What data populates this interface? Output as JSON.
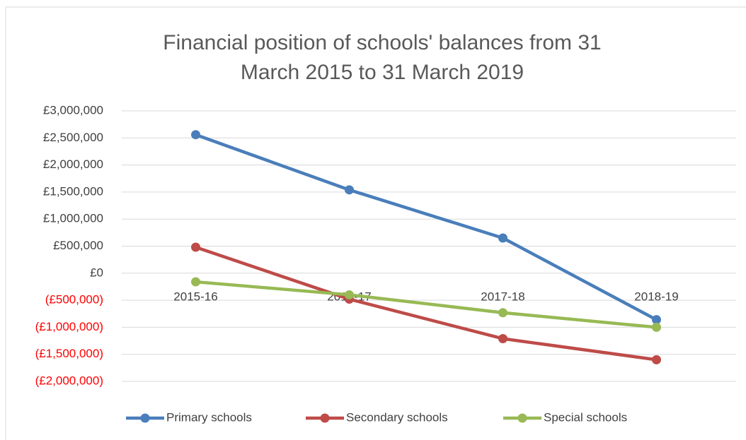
{
  "chart_data": {
    "type": "line",
    "title": "Financial position of schools' balances from 31 March 2015 to 31 March 2019",
    "categories": [
      "2015-16",
      "2016-17",
      "2017-18",
      "2018-19"
    ],
    "series": [
      {
        "name": "Primary schools",
        "color": "#4a7ebb",
        "values": [
          2560000,
          1540000,
          650000,
          -860000
        ]
      },
      {
        "name": "Secondary schools",
        "color": "#be4b48",
        "values": [
          480000,
          -480000,
          -1210000,
          -1600000
        ]
      },
      {
        "name": "Special schools",
        "color": "#98b954",
        "values": [
          -160000,
          -400000,
          -730000,
          -1000000
        ]
      }
    ],
    "ylim": [
      -2000000,
      3000000
    ],
    "yticks": [
      {
        "value": -2000000,
        "label": "(£2,000,000)"
      },
      {
        "value": -1500000,
        "label": "(£1,500,000)"
      },
      {
        "value": -1000000,
        "label": "(£1,000,000)"
      },
      {
        "value": -500000,
        "label": "(£500,000)"
      },
      {
        "value": 0,
        "label": "£0"
      },
      {
        "value": 500000,
        "label": "£500,000"
      },
      {
        "value": 1000000,
        "label": "£1,000,000"
      },
      {
        "value": 1500000,
        "label": "£1,500,000"
      },
      {
        "value": 2000000,
        "label": "£2,000,000"
      },
      {
        "value": 2500000,
        "label": "£2,500,000"
      },
      {
        "value": 3000000,
        "label": "£3,000,000"
      }
    ],
    "negative_tick_color": "#ff0000",
    "grid": true,
    "legend": "bottom"
  }
}
